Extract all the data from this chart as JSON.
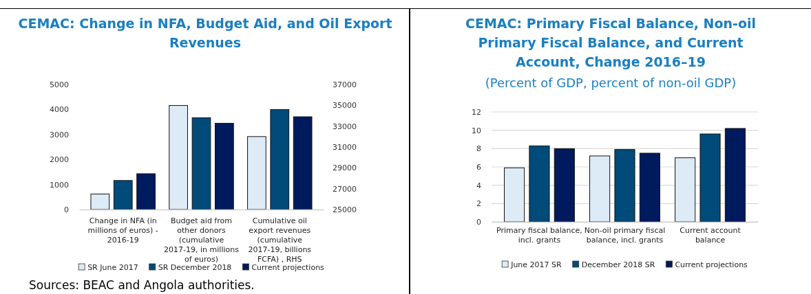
{
  "chart_data": [
    {
      "type": "bar",
      "title": "CEMAC: Change in NFA, Budget Aid, and Oil Export Revenues",
      "categories": [
        "Change in NFA (in millions of euros) - 2016-19",
        "Budget aid from other donors (cumulative 2017-19, in millions of euros)",
        "Cumulative oil export revenues (cumulative 2017-19, billions FCFA) , RHS"
      ],
      "series": [
        {
          "name": "SR June 2017",
          "color": "#ddebf7",
          "values": [
            620,
            4160,
            null
          ]
        },
        {
          "name": "SR December 2018",
          "color": "#004b79",
          "values": [
            1160,
            3670,
            null
          ]
        },
        {
          "name": "Current projections",
          "color": "#001a5e",
          "values": [
            1430,
            3450,
            null
          ]
        },
        {
          "color": "#ddebf7",
          "axis": "y2",
          "values": [
            null,
            null,
            32000
          ]
        },
        {
          "color": "#004b79",
          "axis": "y2",
          "values": [
            null,
            null,
            34600
          ]
        },
        {
          "color": "#001a5e",
          "axis": "y2",
          "values": [
            null,
            null,
            33900
          ]
        }
      ],
      "ylim": [
        0,
        5000
      ],
      "yticks": [
        0,
        1000,
        2000,
        3000,
        4000,
        5000
      ],
      "y2lim": [
        25000,
        37000
      ],
      "y2ticks": [
        25000,
        27000,
        29000,
        31000,
        33000,
        35000,
        37000
      ],
      "grid": false,
      "legend": "bottom",
      "annotations": [
        "Sources: BEAC and Angola authorities."
      ]
    },
    {
      "type": "bar",
      "title": "CEMAC: Primary Fiscal Balance, Non-oil Primary Fiscal Balance, and Current Account, Change 2016–19",
      "subtitle": "(Percent of GDP, percent of non-oil GDP)",
      "categories": [
        "Primary fiscal balance, incl. grants",
        "Non-oil primary fiscal balance, incl. grants",
        "Current account balance"
      ],
      "series": [
        {
          "name": "June 2017 SR",
          "color": "#ddebf7",
          "values": [
            5.9,
            7.2,
            7.0
          ]
        },
        {
          "name": "December 2018 SR",
          "color": "#004b79",
          "values": [
            8.3,
            7.9,
            9.6
          ]
        },
        {
          "name": "Current projections",
          "color": "#001a5e",
          "values": [
            8.0,
            7.5,
            10.2
          ]
        }
      ],
      "ylim": [
        0,
        12
      ],
      "yticks": [
        0,
        2,
        4,
        6,
        8,
        10,
        12
      ],
      "grid": "y",
      "legend": "bottom"
    }
  ]
}
